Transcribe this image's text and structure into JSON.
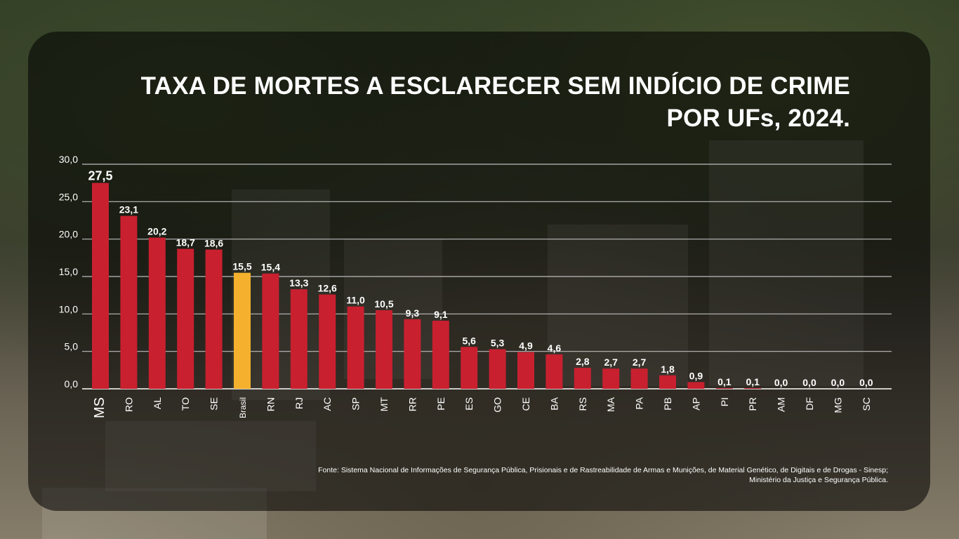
{
  "chart_data": {
    "type": "bar",
    "title": [
      "TAXA DE MORTES A ESCLARECER SEM INDÍCIO DE CRIME",
      "POR UFs, 2024."
    ],
    "xlabel": "",
    "ylabel": "",
    "ylim": [
      0,
      30
    ],
    "yticks": [
      "0,0",
      "5,0",
      "10,0",
      "15,0",
      "20,0",
      "25,0",
      "30,0"
    ],
    "grid": true,
    "categories": [
      "MS",
      "RO",
      "AL",
      "TO",
      "SE",
      "Brasil",
      "RN",
      "RJ",
      "AC",
      "SP",
      "MT",
      "RR",
      "PE",
      "ES",
      "GO",
      "CE",
      "BA",
      "RS",
      "MA",
      "PA",
      "PB",
      "AP",
      "PI",
      "PR",
      "AM",
      "DF",
      "MG",
      "SC"
    ],
    "values": [
      27.5,
      23.1,
      20.2,
      18.7,
      18.6,
      15.5,
      15.4,
      13.3,
      12.6,
      11.0,
      10.5,
      9.3,
      9.1,
      5.6,
      5.3,
      4.9,
      4.6,
      2.8,
      2.7,
      2.7,
      1.8,
      0.9,
      0.1,
      0.1,
      0.0,
      0.0,
      0.0,
      0.0
    ],
    "value_labels": [
      "27,5",
      "23,1",
      "20,2",
      "18,7",
      "18,6",
      "15,5",
      "15,4",
      "13,3",
      "12,6",
      "11,0",
      "10,5",
      "9,3",
      "9,1",
      "5,6",
      "5,3",
      "4,9",
      "4,6",
      "2,8",
      "2,7",
      "2,7",
      "1,8",
      "0,9",
      "0,1",
      "0,1",
      "0,0",
      "0,0",
      "0,0",
      "0,0"
    ],
    "highlight": "Brasil",
    "colors": {
      "bar": "#c8202f",
      "highlight": "#f5b12e",
      "grid": "#bdbdbd",
      "text": "#ffffff"
    }
  },
  "source": [
    "Fonte: Sistema Nacional de Informações de Segurança Pública, Prisionais e de Rastreabilidade de Armas e Munições, de Material Genético, de Digitais e de Drogas - Sinesp;",
    "Ministério da Justiça e Segurança Pública."
  ]
}
